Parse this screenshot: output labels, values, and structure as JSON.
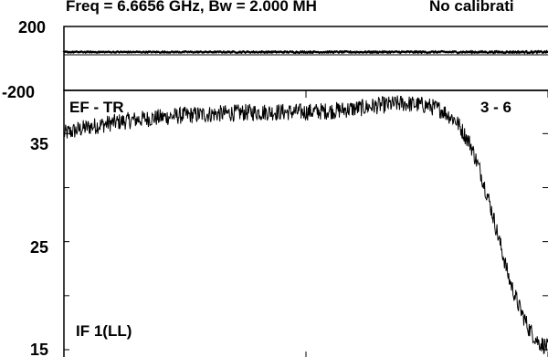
{
  "header": {
    "title": "Freq = 6.6656 GHz, Bw = 2.000 MH",
    "note": "No calibrati"
  },
  "chart_data": [
    {
      "type": "scatter",
      "panel": "phase",
      "ylim": [
        -200,
        200
      ],
      "yticks": [
        "200",
        "-200"
      ],
      "series": [
        {
          "x_range": [
            0,
            1
          ],
          "y_mean": 40,
          "y_noise": 6,
          "style": "dense-cross-markers"
        }
      ]
    },
    {
      "type": "line",
      "panel": "amplitude",
      "title": "EF - TR",
      "baseline_label": "3 - 6",
      "if_label": "IF 1(LL)",
      "ylim": [
        15,
        39
      ],
      "yticks": [
        "35",
        "25",
        "15"
      ],
      "series": [
        {
          "x": [
            0.0,
            0.05,
            0.1,
            0.15,
            0.2,
            0.25,
            0.3,
            0.35,
            0.4,
            0.45,
            0.5,
            0.55,
            0.6,
            0.65,
            0.7,
            0.75,
            0.78,
            0.81,
            0.84,
            0.86,
            0.88,
            0.9,
            0.92,
            0.94,
            0.96,
            0.98,
            1.0
          ],
          "y": [
            35.0,
            35.6,
            36.0,
            36.3,
            36.5,
            36.7,
            36.8,
            36.9,
            37.0,
            37.0,
            37.0,
            37.1,
            37.3,
            37.6,
            37.8,
            37.6,
            37.2,
            36.2,
            34.0,
            31.5,
            28.5,
            25.0,
            21.5,
            19.0,
            17.0,
            15.7,
            15.2
          ]
        }
      ]
    }
  ]
}
